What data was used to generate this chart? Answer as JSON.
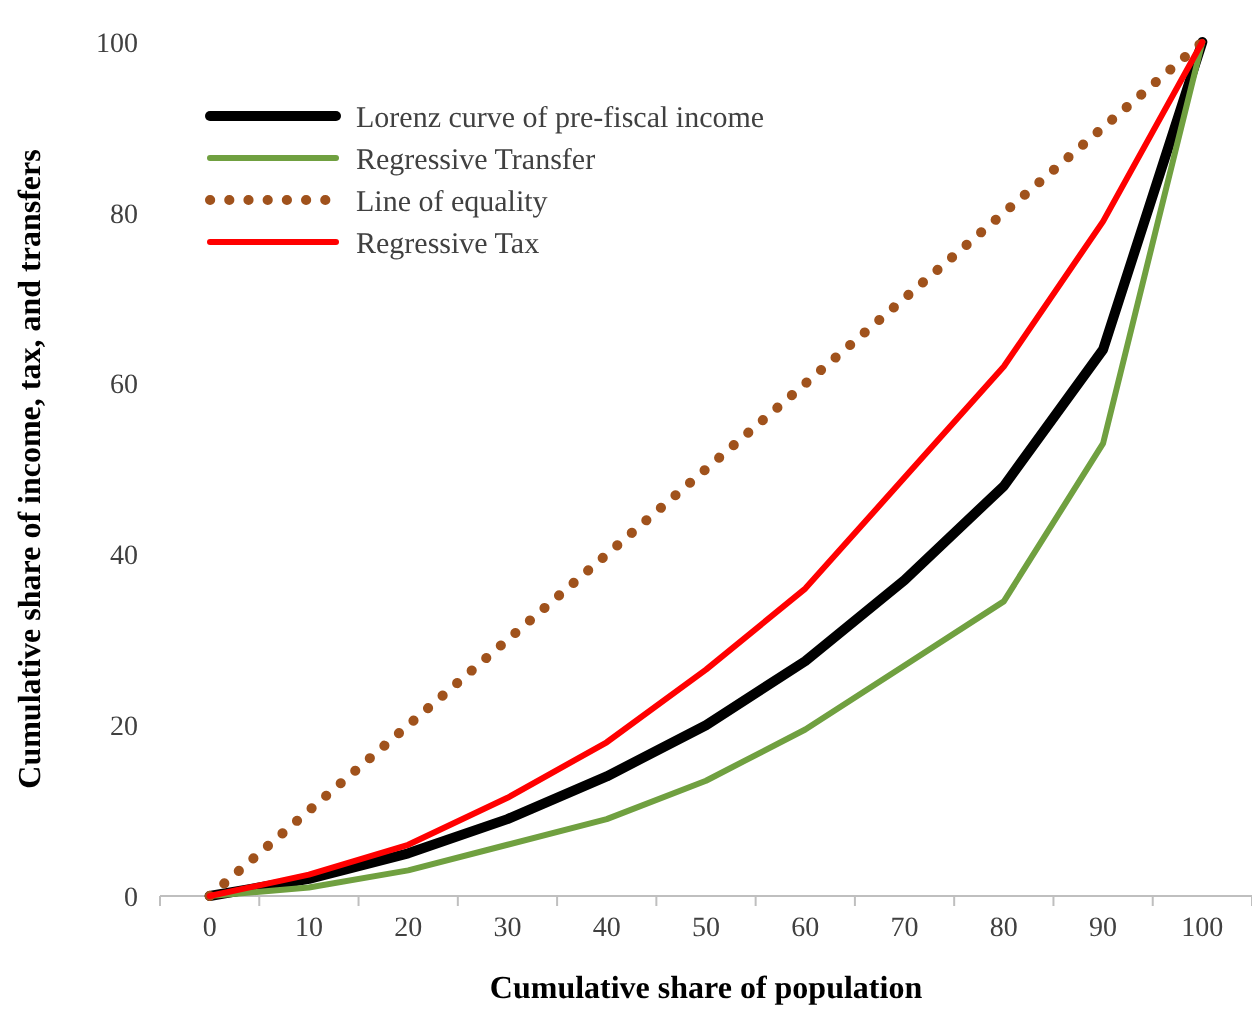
{
  "chart_data": {
    "type": "line",
    "xlabel": "Cumulative share of population",
    "ylabel": "Cumulative share of income, tax, and transfers",
    "categories": [
      "0",
      "10",
      "20",
      "30",
      "40",
      "50",
      "60",
      "70",
      "80",
      "90",
      "100"
    ],
    "ylim": [
      0,
      100
    ],
    "yticks": [
      0,
      20,
      40,
      60,
      80,
      100
    ],
    "grid": false,
    "legend": "top left",
    "marker": "none",
    "series": [
      {
        "name": "Lorenz curve of pre-fiscal income",
        "color": "#000000",
        "values": [
          0,
          2,
          5,
          9,
          14,
          20,
          27.5,
          37,
          48,
          64,
          100
        ]
      },
      {
        "name": "Regressive Transfer",
        "color": "#70a040",
        "values": [
          0,
          1,
          3,
          6,
          9,
          13.5,
          19.5,
          27,
          34.5,
          53,
          100
        ]
      },
      {
        "name": "Line of equality",
        "color": "#a0521c",
        "line_style": "dotted",
        "values": [
          0,
          10,
          20,
          30,
          40,
          50,
          60,
          70,
          80,
          90,
          100
        ]
      },
      {
        "name": "Regressive Tax",
        "color": "#ff0000",
        "values": [
          0,
          2.5,
          6,
          11.5,
          18,
          26.5,
          36,
          49,
          62,
          79,
          100
        ]
      }
    ]
  }
}
